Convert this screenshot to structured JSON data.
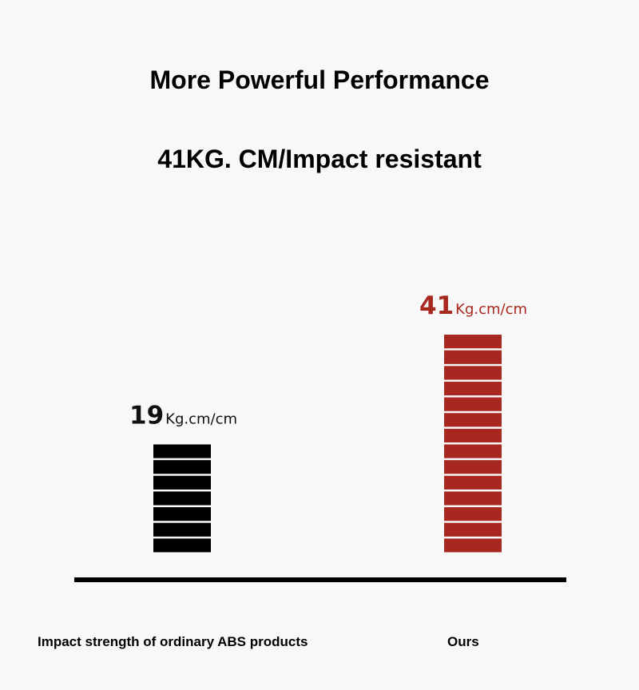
{
  "header": {
    "title": "More Powerful Performance",
    "subtitle": "41KG. CM/Impact resistant"
  },
  "chart_data": {
    "type": "bar",
    "title": "More Powerful Performance",
    "subtitle": "41KG. CM/Impact resistant",
    "categories": [
      "Impact strength of ordinary ABS products",
      "Ours"
    ],
    "values": [
      19,
      41
    ],
    "unit": "Kg.cm/cm",
    "value_labels": [
      "19",
      "41"
    ],
    "segments": [
      7,
      14
    ],
    "colors": [
      "#000000",
      "#a8281f"
    ],
    "ylim": [
      0,
      41
    ],
    "grid": false,
    "xlabel": "",
    "ylabel": ""
  }
}
